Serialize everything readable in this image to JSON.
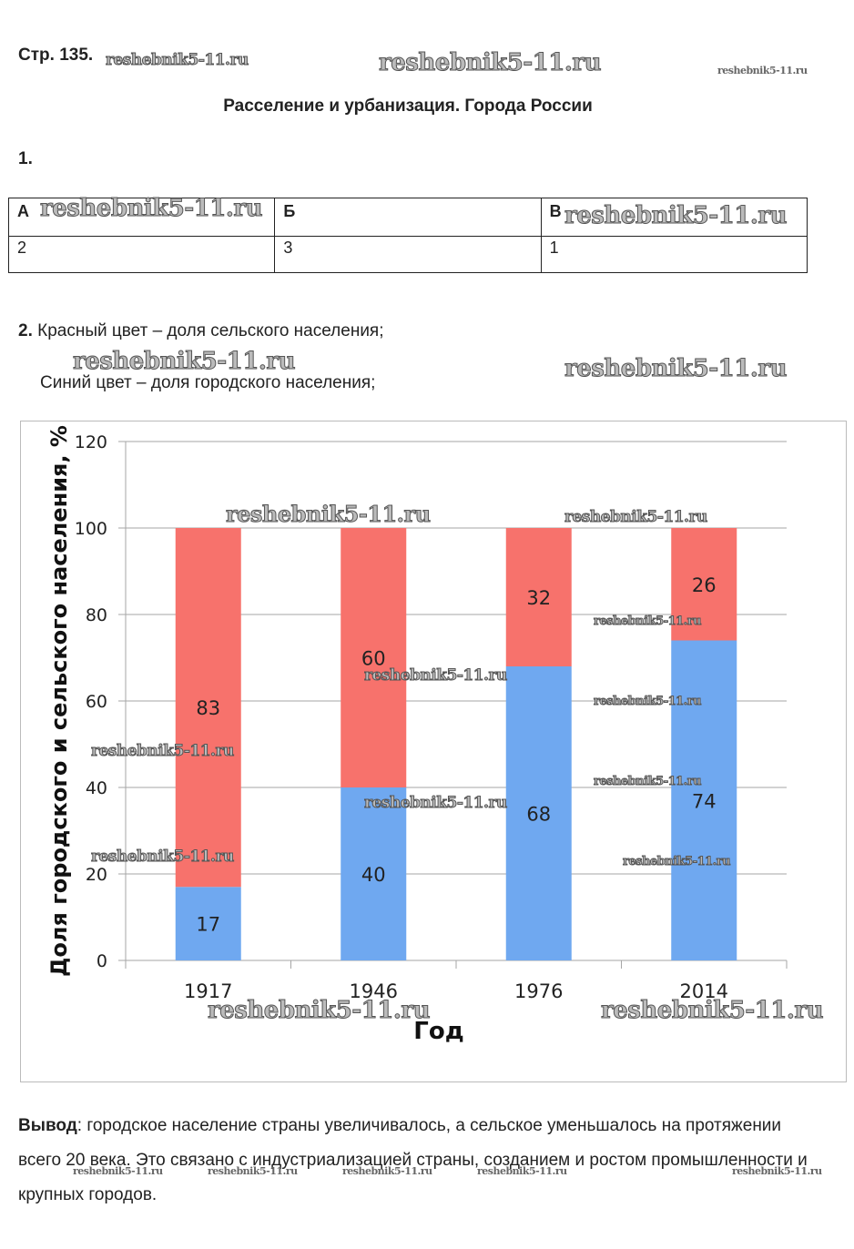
{
  "header": {
    "page_label": "Стр. 135.",
    "title": "Расселение и урбанизация. Города России"
  },
  "watermark": "reshebnik5-11.ru",
  "task1": {
    "number": "1.",
    "table": {
      "headers": [
        "А",
        "Б",
        "В"
      ],
      "values": [
        "2",
        "3",
        "1"
      ]
    }
  },
  "task2": {
    "number": "2.",
    "red_note": "Красный цвет – доля сельского населения;",
    "blue_note": "Синий цвет – доля городского населения;"
  },
  "chart_data": {
    "type": "bar",
    "stacked": true,
    "title": "",
    "xlabel": "Год",
    "ylabel": "Доля городского и сельского населения, %",
    "categories": [
      "1917",
      "1946",
      "1976",
      "2014"
    ],
    "series": [
      {
        "name": "Городское население",
        "color": "#6fa8f0",
        "values": [
          17,
          40,
          68,
          74
        ]
      },
      {
        "name": "Сельское население",
        "color": "#f7726c",
        "values": [
          83,
          60,
          32,
          26
        ]
      }
    ],
    "ylim": [
      0,
      120
    ],
    "yticks": [
      0,
      20,
      40,
      60,
      80,
      100,
      120
    ],
    "grid": true,
    "legend": "none"
  },
  "conclusion": {
    "label": "Вывод",
    "text": ": городское население страны увеличивалось, а сельское уменьшалось на протяжении всего 20 века. Это связано с индустриализацией страны, созданием и ростом промышленности и крупных городов."
  }
}
